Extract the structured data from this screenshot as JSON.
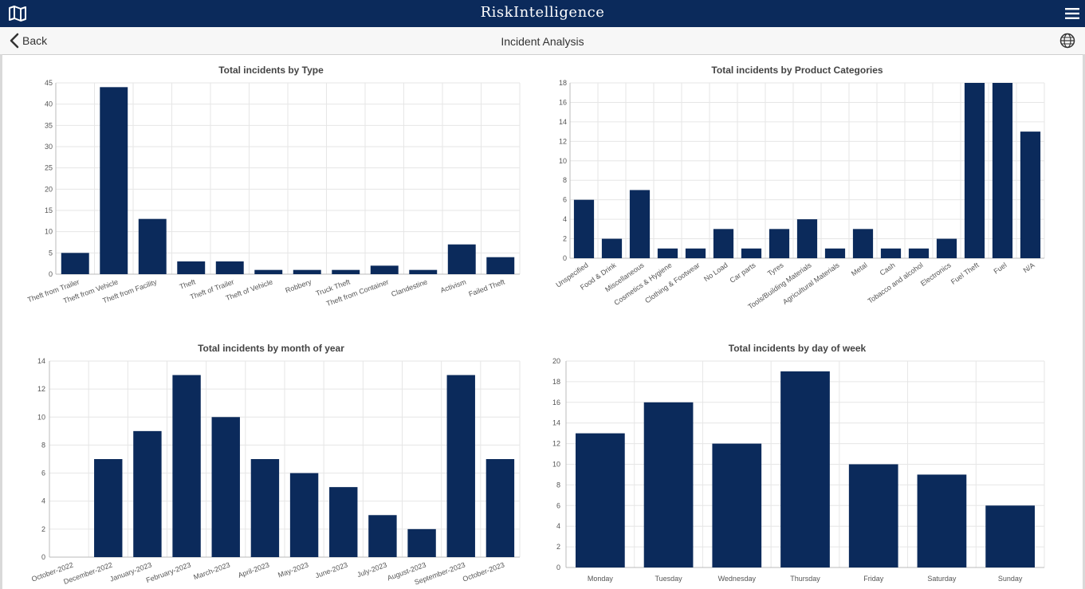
{
  "app": {
    "title": "RiskIntelligence"
  },
  "nav": {
    "back_label": "Back",
    "page_title": "Incident Analysis"
  },
  "icons": {
    "map": "map-icon",
    "menu": "hamburger-menu-icon",
    "back": "chevron-left-icon",
    "globe": "globe-icon"
  },
  "colors": {
    "header": "#0b2a5b",
    "bar": "#0b2a5b"
  },
  "chart_data": [
    {
      "type": "bar",
      "title": "Total incidents by Type",
      "categories": [
        "Theft from Trailer",
        "Theft from Vehicle",
        "Theft from Facility",
        "Theft",
        "Theft of Trailer",
        "Theft of Vehicle",
        "Robbery",
        "Truck Theft",
        "Theft from Container",
        "Clandestine",
        "Activism",
        "Failed Theft"
      ],
      "values": [
        5,
        44,
        13,
        3,
        3,
        1,
        1,
        1,
        2,
        1,
        7,
        4
      ],
      "ylim": [
        0,
        45
      ],
      "ystep": 5,
      "xlabel": "",
      "ylabel": ""
    },
    {
      "type": "bar",
      "title": "Total incidents by Product Categories",
      "categories": [
        "Unspecified",
        "Food & Drink",
        "Miscellaneous",
        "Cosmetics & Hygiene",
        "Clothing & Footwear",
        "No Load",
        "Car parts",
        "Tyres",
        "Tools/Building Materials",
        "Agricultural Materials",
        "Metal",
        "Cash",
        "Tobacco and alcohol",
        "Electronics",
        "Fuel Theft",
        "Fuel",
        "N/A"
      ],
      "values": [
        6,
        2,
        7,
        1,
        1,
        3,
        1,
        3,
        4,
        1,
        3,
        1,
        1,
        2,
        18,
        18,
        13
      ],
      "ylim": [
        0,
        18
      ],
      "ystep": 2,
      "xlabel": "",
      "ylabel": ""
    },
    {
      "type": "bar",
      "title": "Total incidents by month of year",
      "categories": [
        "October-2022",
        "December-2022",
        "January-2023",
        "February-2023",
        "March-2023",
        "April-2023",
        "May-2023",
        "June-2023",
        "July-2023",
        "August-2023",
        "September-2023",
        "October-2023"
      ],
      "values": [
        0,
        7,
        9,
        13,
        10,
        7,
        6,
        5,
        3,
        2,
        13,
        7
      ],
      "ylim": [
        0,
        14
      ],
      "ystep": 2,
      "xlabel": "",
      "ylabel": ""
    },
    {
      "type": "bar",
      "title": "Total incidents by day of week",
      "categories": [
        "Monday",
        "Tuesday",
        "Wednesday",
        "Thursday",
        "Friday",
        "Saturday",
        "Sunday"
      ],
      "values": [
        13,
        16,
        12,
        19,
        10,
        9,
        6
      ],
      "ylim": [
        0,
        20
      ],
      "ystep": 2,
      "xlabel": "",
      "ylabel": ""
    }
  ]
}
